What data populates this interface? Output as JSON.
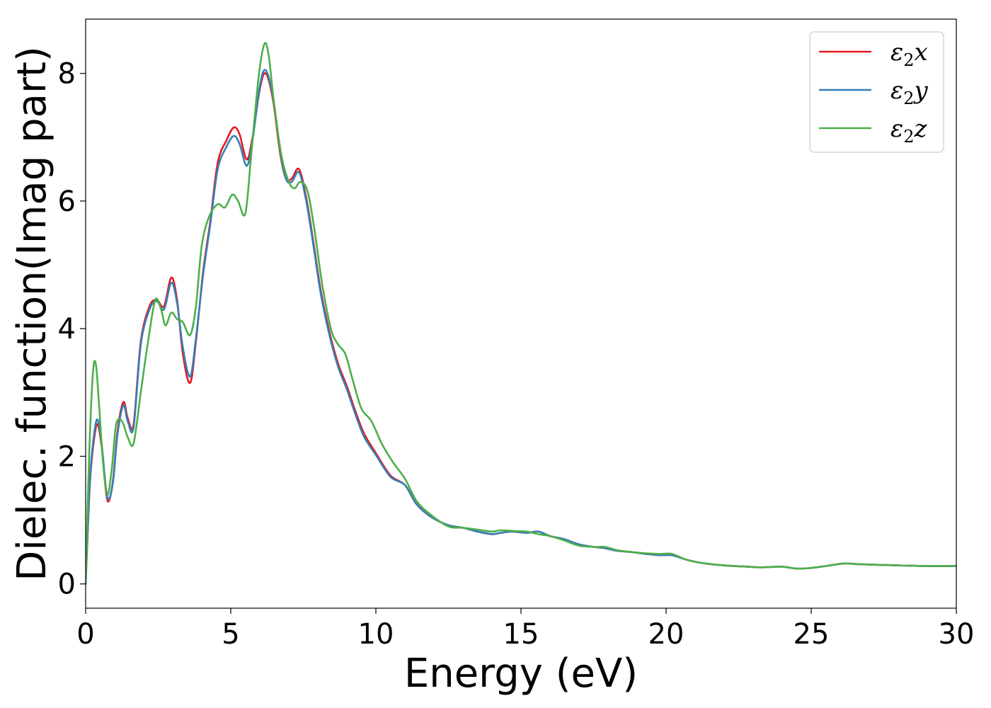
{
  "chart_data": {
    "type": "line",
    "title": "",
    "xlabel": "Energy (eV)",
    "ylabel": "Dielec. function(Imag part)",
    "xlim": [
      0,
      30
    ],
    "ylim": [
      -0.38,
      8.85
    ],
    "xticks": [
      0,
      5,
      10,
      15,
      20,
      25,
      30
    ],
    "xtick_labels": [
      "0",
      "5",
      "10",
      "15",
      "20",
      "25",
      "30"
    ],
    "yticks": [
      0,
      2,
      4,
      6,
      8
    ],
    "ytick_labels": [
      "0",
      "2",
      "4",
      "6",
      "8"
    ],
    "grid": false,
    "legend": "top-right",
    "series": [
      {
        "name": "ε2x",
        "legend_base": "ε",
        "legend_sub": "2",
        "legend_var": "x",
        "color": "#e41a1c",
        "x": [
          0,
          0.15,
          0.3,
          0.42,
          0.55,
          0.7,
          0.8,
          0.95,
          1.1,
          1.3,
          1.45,
          1.65,
          1.9,
          2.2,
          2.45,
          2.7,
          2.95,
          3.15,
          3.35,
          3.6,
          3.8,
          4.05,
          4.3,
          4.55,
          4.85,
          5.1,
          5.3,
          5.55,
          5.75,
          6.0,
          6.2,
          6.45,
          6.7,
          6.9,
          7.1,
          7.35,
          7.6,
          7.85,
          8.1,
          8.4,
          8.7,
          9.0,
          9.3,
          9.6,
          10.0,
          10.5,
          11.0,
          11.4,
          11.9,
          12.5,
          13.0,
          13.5,
          14.0,
          14.3,
          14.7,
          15.2,
          15.6,
          16.0,
          16.5,
          17.0,
          17.5,
          17.9,
          18.3,
          18.8,
          19.3,
          19.8,
          20.2,
          20.7,
          21.2,
          22.0,
          22.8,
          23.3,
          24.0,
          24.5,
          25.0,
          25.5,
          26.1,
          26.6,
          27.2,
          28.0,
          29.0,
          30.0
        ],
        "y": [
          0,
          1.6,
          2.3,
          2.5,
          2.15,
          1.45,
          1.3,
          1.65,
          2.4,
          2.85,
          2.6,
          2.5,
          3.8,
          4.35,
          4.45,
          4.35,
          4.8,
          4.45,
          3.6,
          3.15,
          3.8,
          4.9,
          5.7,
          6.6,
          6.95,
          7.15,
          7.05,
          6.65,
          7.0,
          7.75,
          8.0,
          7.6,
          6.75,
          6.35,
          6.35,
          6.5,
          6.05,
          5.35,
          4.6,
          3.95,
          3.45,
          3.1,
          2.7,
          2.35,
          2.05,
          1.7,
          1.55,
          1.25,
          1.05,
          0.92,
          0.88,
          0.82,
          0.78,
          0.8,
          0.82,
          0.8,
          0.82,
          0.75,
          0.7,
          0.62,
          0.58,
          0.56,
          0.52,
          0.5,
          0.47,
          0.45,
          0.45,
          0.38,
          0.33,
          0.29,
          0.27,
          0.26,
          0.27,
          0.24,
          0.25,
          0.28,
          0.32,
          0.31,
          0.3,
          0.29,
          0.28,
          0.28
        ]
      },
      {
        "name": "ε2y",
        "legend_base": "ε",
        "legend_sub": "2",
        "legend_var": "y",
        "color": "#377eb8",
        "x": [
          0,
          0.15,
          0.3,
          0.42,
          0.55,
          0.7,
          0.8,
          0.95,
          1.1,
          1.3,
          1.45,
          1.65,
          1.9,
          2.2,
          2.45,
          2.7,
          2.95,
          3.15,
          3.35,
          3.6,
          3.8,
          4.05,
          4.3,
          4.55,
          4.85,
          5.1,
          5.3,
          5.55,
          5.75,
          6.0,
          6.2,
          6.45,
          6.7,
          6.9,
          7.1,
          7.35,
          7.6,
          7.85,
          8.1,
          8.4,
          8.7,
          9.0,
          9.3,
          9.6,
          10.0,
          10.5,
          11.0,
          11.4,
          11.9,
          12.5,
          13.0,
          13.5,
          14.0,
          14.3,
          14.7,
          15.2,
          15.6,
          16.0,
          16.5,
          17.0,
          17.5,
          17.9,
          18.3,
          18.8,
          19.3,
          19.8,
          20.2,
          20.7,
          21.2,
          22.0,
          22.8,
          23.3,
          24.0,
          24.5,
          25.0,
          25.5,
          26.1,
          26.6,
          27.2,
          28.0,
          29.0,
          30.0
        ],
        "y": [
          0,
          1.65,
          2.38,
          2.57,
          2.2,
          1.5,
          1.33,
          1.62,
          2.35,
          2.8,
          2.55,
          2.45,
          3.75,
          4.3,
          4.43,
          4.3,
          4.72,
          4.4,
          3.7,
          3.25,
          3.85,
          4.85,
          5.65,
          6.5,
          6.85,
          7.02,
          6.9,
          6.55,
          6.95,
          7.8,
          8.05,
          7.65,
          6.8,
          6.35,
          6.3,
          6.45,
          6.0,
          5.3,
          4.55,
          3.9,
          3.4,
          3.05,
          2.65,
          2.3,
          2.02,
          1.68,
          1.55,
          1.25,
          1.05,
          0.92,
          0.88,
          0.82,
          0.78,
          0.8,
          0.82,
          0.8,
          0.82,
          0.75,
          0.7,
          0.62,
          0.58,
          0.56,
          0.52,
          0.5,
          0.47,
          0.45,
          0.45,
          0.38,
          0.33,
          0.29,
          0.27,
          0.26,
          0.27,
          0.24,
          0.25,
          0.28,
          0.32,
          0.31,
          0.3,
          0.29,
          0.28,
          0.28
        ]
      },
      {
        "name": "ε2z",
        "legend_base": "ε",
        "legend_sub": "2",
        "legend_var": "z",
        "color": "#4daf4a",
        "x": [
          0,
          0.12,
          0.25,
          0.35,
          0.45,
          0.6,
          0.75,
          0.9,
          1.05,
          1.25,
          1.45,
          1.65,
          1.9,
          2.15,
          2.4,
          2.6,
          2.75,
          2.95,
          3.15,
          3.35,
          3.6,
          3.8,
          4.0,
          4.25,
          4.55,
          4.8,
          5.05,
          5.25,
          5.5,
          5.7,
          5.95,
          6.15,
          6.3,
          6.5,
          6.75,
          7.0,
          7.2,
          7.4,
          7.65,
          7.9,
          8.15,
          8.45,
          8.7,
          8.95,
          9.2,
          9.5,
          9.85,
          10.2,
          10.6,
          11.0,
          11.4,
          11.9,
          12.5,
          13.0,
          13.5,
          14.0,
          14.3,
          14.7,
          15.2,
          15.6,
          16.0,
          16.5,
          17.0,
          17.5,
          17.9,
          18.3,
          18.8,
          19.3,
          19.8,
          20.2,
          20.7,
          21.2,
          22.0,
          22.8,
          23.3,
          24.0,
          24.5,
          25.0,
          25.5,
          26.1,
          26.6,
          27.2,
          28.0,
          29.0,
          30.0
        ],
        "y": [
          0,
          2.0,
          3.3,
          3.45,
          2.9,
          1.9,
          1.4,
          1.8,
          2.5,
          2.55,
          2.3,
          2.2,
          3.0,
          3.8,
          4.45,
          4.3,
          4.05,
          4.25,
          4.15,
          4.1,
          3.9,
          4.35,
          5.3,
          5.75,
          5.95,
          5.9,
          6.1,
          6.0,
          5.8,
          6.7,
          7.9,
          8.45,
          8.3,
          7.5,
          6.7,
          6.3,
          6.2,
          6.3,
          6.15,
          5.5,
          4.7,
          4.0,
          3.75,
          3.6,
          3.2,
          2.75,
          2.55,
          2.2,
          1.9,
          1.65,
          1.3,
          1.08,
          0.9,
          0.88,
          0.85,
          0.82,
          0.84,
          0.83,
          0.82,
          0.78,
          0.75,
          0.68,
          0.6,
          0.58,
          0.58,
          0.53,
          0.5,
          0.48,
          0.47,
          0.47,
          0.38,
          0.33,
          0.29,
          0.27,
          0.26,
          0.27,
          0.24,
          0.25,
          0.28,
          0.32,
          0.31,
          0.3,
          0.29,
          0.28,
          0.28
        ]
      }
    ]
  }
}
